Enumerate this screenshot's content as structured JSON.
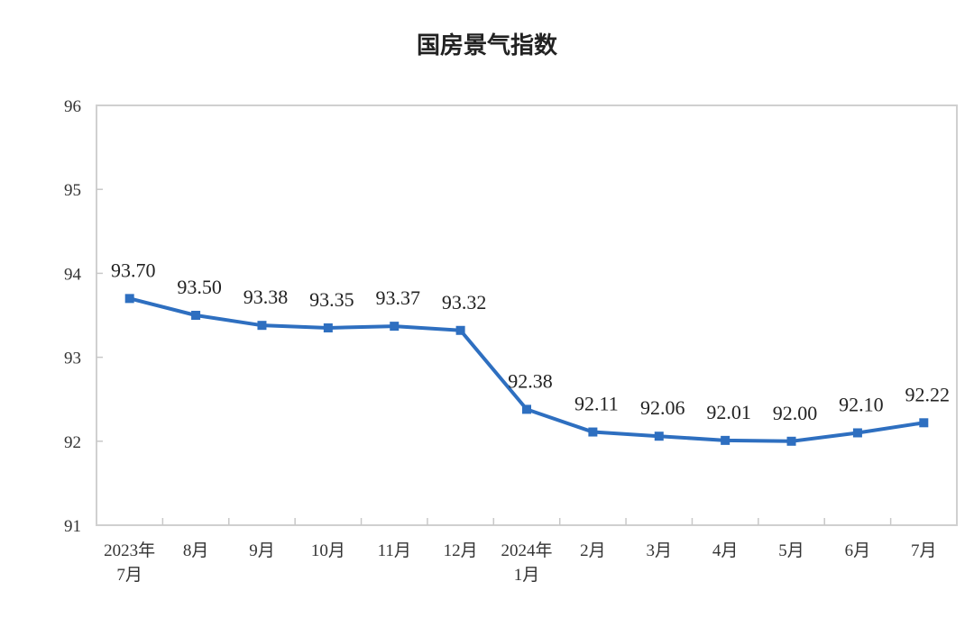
{
  "chart_data": {
    "type": "line",
    "title": "国房景气指数",
    "xlabel": "",
    "ylabel": "",
    "ylim": [
      91,
      96
    ],
    "yticks": [
      91,
      92,
      93,
      94,
      95,
      96
    ],
    "grid": false,
    "legend": null,
    "categories": [
      [
        "2023年",
        "7月"
      ],
      [
        "8月"
      ],
      [
        "9月"
      ],
      [
        "10月"
      ],
      [
        "11月"
      ],
      [
        "12月"
      ],
      [
        "2024年",
        "1月"
      ],
      [
        "2月"
      ],
      [
        "3月"
      ],
      [
        "4月"
      ],
      [
        "5月"
      ],
      [
        "6月"
      ],
      [
        "7月"
      ]
    ],
    "series": [
      {
        "name": "国房景气指数",
        "color": "#2e6fc0",
        "marker": "square",
        "values": [
          93.7,
          93.5,
          93.38,
          93.35,
          93.37,
          93.32,
          92.38,
          92.11,
          92.06,
          92.01,
          92.0,
          92.1,
          92.22
        ],
        "labels": [
          "93.70",
          "93.50",
          "93.38",
          "93.35",
          "93.37",
          "93.32",
          "92.38",
          "92.11",
          "92.06",
          "92.01",
          "92.00",
          "92.10",
          "92.22"
        ]
      }
    ]
  }
}
